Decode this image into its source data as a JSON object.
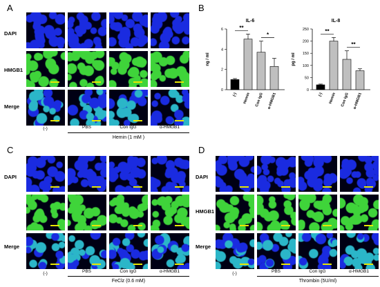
{
  "panels": {
    "A": {
      "letter": "A",
      "rows": [
        "DAPI",
        "HMGB1",
        "Merge"
      ],
      "columns": [
        "(-)",
        "PBS",
        "Con IgG",
        "α-HMGB1"
      ],
      "treatment": "Hemin (1 mM )"
    },
    "B": {
      "letter": "B"
    },
    "C": {
      "letter": "C",
      "rows": [
        "DAPI",
        "",
        "Merge"
      ],
      "columns": [
        "(-)",
        "PBS",
        "Con IgG",
        "α-HMGB1"
      ],
      "treatment": "FeClz (0.6 mM)"
    },
    "D": {
      "letter": "D",
      "rows": [
        "DAPI",
        "HMGB1",
        "Merge"
      ],
      "columns": [
        "(-)",
        "PBS",
        "Con IgG",
        "α-HMGB1"
      ],
      "treatment": "Thrombin (5U/ml)"
    }
  },
  "stain_colors": {
    "DAPI": "#1a2be0",
    "HMGB1": "#3fd43a",
    "Merge": "#2bb6c8",
    "background": "#000014"
  },
  "chart_data": [
    {
      "type": "bar",
      "title": "IL-6",
      "ylabel": "ng / ml",
      "categories": [
        "(-)",
        "Hemin",
        "Con IgG",
        "α-HMGB1"
      ],
      "values": [
        1.0,
        5.0,
        3.7,
        2.3
      ],
      "errors": [
        0.1,
        0.5,
        1.1,
        0.8
      ],
      "colors": [
        "#000000",
        "#bfbfbf",
        "#bfbfbf",
        "#bfbfbf"
      ],
      "ylim": [
        0,
        6
      ],
      "yticks": [
        0,
        2,
        4,
        6
      ],
      "significance": [
        {
          "from": 0,
          "to": 1,
          "label": "**"
        },
        {
          "from": 2,
          "to": 3,
          "label": "*"
        }
      ]
    },
    {
      "type": "bar",
      "title": "IL-8",
      "ylabel": "pg / ml",
      "categories": [
        "(-)",
        "Hemin",
        "Con IgG",
        "α-HMGB1"
      ],
      "values": [
        20,
        200,
        125,
        78
      ],
      "errors": [
        3,
        15,
        35,
        8
      ],
      "colors": [
        "#000000",
        "#bfbfbf",
        "#bfbfbf",
        "#bfbfbf"
      ],
      "ylim": [
        0,
        250
      ],
      "yticks": [
        0,
        50,
        100,
        150,
        200,
        250
      ],
      "significance": [
        {
          "from": 0,
          "to": 1,
          "label": "**"
        },
        {
          "from": 2,
          "to": 3,
          "label": "**"
        }
      ]
    }
  ]
}
